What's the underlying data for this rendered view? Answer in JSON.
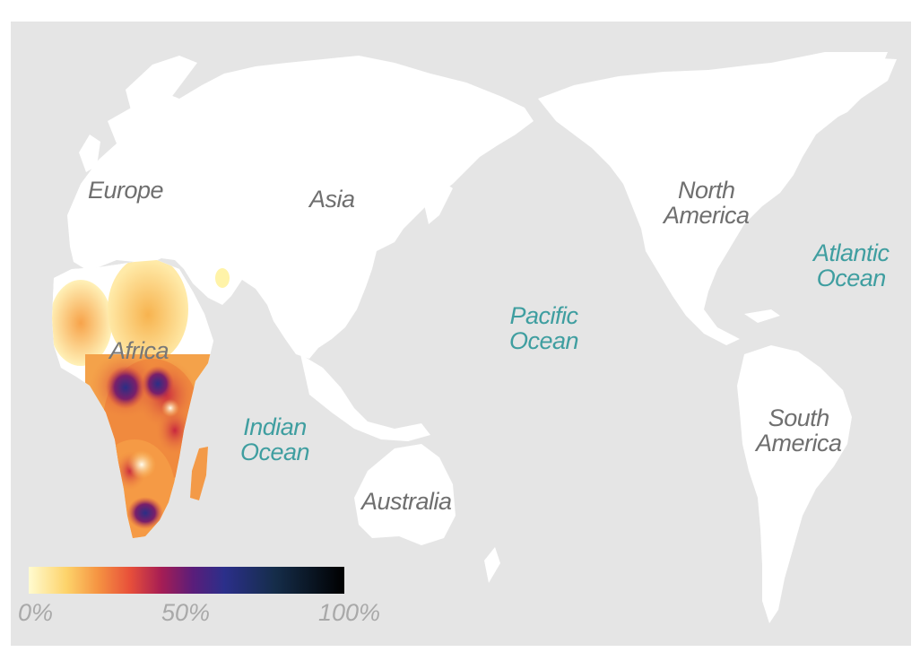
{
  "map": {
    "background_color": "#e5e5e5",
    "land_color": "#ffffff",
    "continents": [
      "Europe",
      "Asia",
      "Africa",
      "North America",
      "South America",
      "Australia"
    ],
    "oceans": [
      "Indian Ocean",
      "Pacific Ocean",
      "Atlantic Ocean"
    ]
  },
  "labels": {
    "europe": "Europe",
    "asia": "Asia",
    "africa": "Africa",
    "north_america": [
      "North",
      "America"
    ],
    "south_america": [
      "South",
      "America"
    ],
    "australia": "Australia",
    "indian_ocean": [
      "Indian",
      "Ocean"
    ],
    "pacific_ocean": [
      "Pacific",
      "Ocean"
    ],
    "atlantic_ocean": [
      "Atlantic",
      "Ocean"
    ]
  },
  "legend": {
    "ticks": [
      "0%",
      "50%",
      "100%"
    ],
    "colors": [
      "#fffbd0",
      "#fdd36a",
      "#f59342",
      "#e8503a",
      "#a61d54",
      "#5a1d7a",
      "#2b2f8a",
      "#152d4a",
      "#000000"
    ]
  }
}
